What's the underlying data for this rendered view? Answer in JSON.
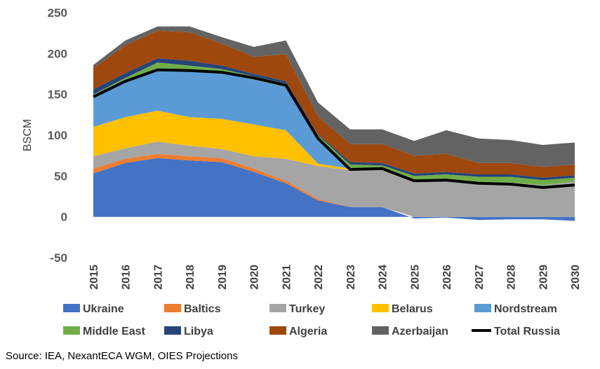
{
  "chart_data": {
    "type": "area",
    "stacked": true,
    "title": "",
    "xlabel": "",
    "ylabel": "BSCM",
    "ylim": [
      -50,
      250
    ],
    "yticks": [
      -50,
      0,
      50,
      100,
      150,
      200,
      250
    ],
    "grid": false,
    "legend_position": "bottom",
    "x": [
      "2015",
      "2016",
      "2017",
      "2018",
      "2019",
      "2020",
      "2021",
      "2022",
      "2023",
      "2024",
      "2025",
      "2026",
      "2027",
      "2028",
      "2029",
      "2030"
    ],
    "series": [
      {
        "name": "Ukraine",
        "type": "area",
        "color": "#4472C4",
        "values": [
          53,
          66,
          72,
          69,
          67,
          55,
          41,
          20,
          12,
          12,
          -2,
          -1,
          -4,
          -3,
          -3,
          -5
        ]
      },
      {
        "name": "Baltics",
        "type": "area",
        "color": "#ED7D31",
        "values": [
          6,
          5,
          5,
          5,
          5,
          4,
          3,
          2,
          0,
          0,
          0,
          0,
          0,
          0,
          0,
          0
        ]
      },
      {
        "name": "Turkey",
        "type": "area",
        "color": "#A5A5A5",
        "values": [
          15,
          13,
          15,
          13,
          11,
          15,
          27,
          40,
          45,
          46,
          44,
          46,
          43,
          42,
          39,
          43
        ]
      },
      {
        "name": "Belarus",
        "type": "area",
        "color": "#FFC000",
        "values": [
          36,
          38,
          38,
          35,
          37,
          39,
          35,
          3,
          2,
          0,
          0,
          0,
          0,
          0,
          0,
          0
        ]
      },
      {
        "name": "Nordstream",
        "type": "area",
        "color": "#5B9BD5",
        "values": [
          35,
          43,
          52,
          57,
          56,
          55,
          53,
          33,
          0,
          0,
          0,
          0,
          0,
          0,
          0,
          0
        ]
      },
      {
        "name": "Middle East",
        "type": "area",
        "color": "#70AD47",
        "values": [
          5,
          5,
          7,
          6,
          5,
          4,
          4,
          2,
          5,
          5,
          6,
          6,
          6,
          7,
          6,
          5
        ]
      },
      {
        "name": "Libya",
        "type": "area",
        "color": "#264478",
        "values": [
          6,
          6,
          5,
          6,
          4,
          3,
          3,
          1,
          3,
          3,
          3,
          3,
          3,
          3,
          3,
          3
        ]
      },
      {
        "name": "Algeria",
        "type": "area",
        "color": "#9E480E",
        "values": [
          26,
          34,
          34,
          35,
          27,
          21,
          33,
          22,
          22,
          23,
          22,
          22,
          14,
          14,
          13,
          13
        ]
      },
      {
        "name": "Azerbaijan",
        "type": "area",
        "color": "#636363",
        "values": [
          4,
          6,
          5,
          7,
          8,
          12,
          17,
          17,
          18,
          18,
          18,
          29,
          30,
          28,
          27,
          27
        ]
      },
      {
        "name": "Total Russia",
        "type": "line",
        "color": "#000000",
        "values": [
          147,
          166,
          180,
          179,
          177,
          170,
          161,
          96,
          58,
          59,
          44,
          45,
          41,
          40,
          36,
          39
        ]
      }
    ]
  },
  "source": "Source: IEA, NexantECA WGM, OIES Projections"
}
